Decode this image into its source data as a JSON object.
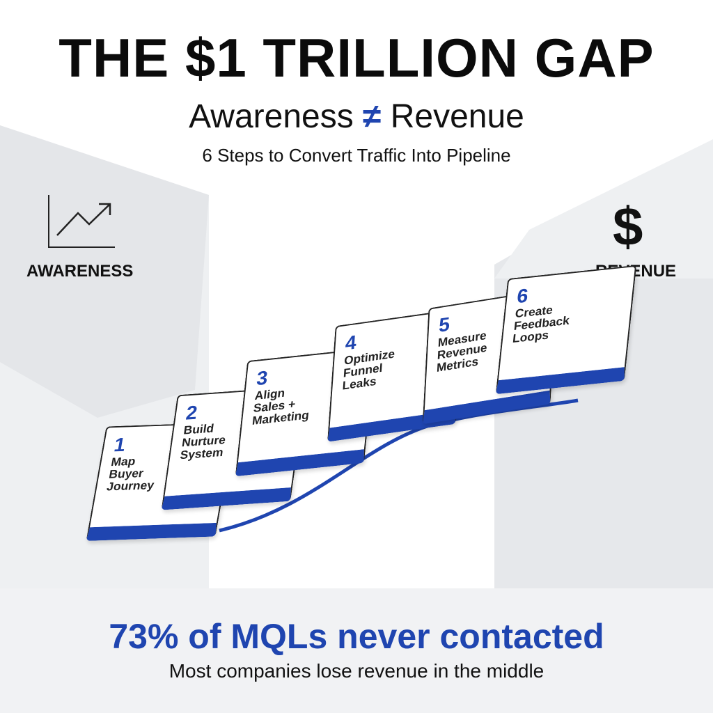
{
  "header": {
    "title": "THE $1 TRILLION GAP",
    "subtitle": {
      "left": "Awareness",
      "symbol": "≠",
      "right": "Revenue"
    },
    "tagline": "6 Steps to Convert Traffic Into Pipeline"
  },
  "start": {
    "label": "AWARENESS"
  },
  "end": {
    "icon": "$",
    "label": "REVENUE"
  },
  "steps": [
    {
      "number": 1,
      "lines": [
        "Map",
        "Buyer",
        "Journey"
      ]
    },
    {
      "number": 2,
      "lines": [
        "Build",
        "Nurture",
        "System"
      ]
    },
    {
      "number": 3,
      "lines": [
        "Align",
        "Sales +",
        "Marketing"
      ]
    },
    {
      "number": 4,
      "lines": [
        "Optimize",
        "Funnel",
        "Leaks"
      ]
    },
    {
      "number": 5,
      "lines": [
        "Measure",
        "Revenue",
        "Metrics"
      ]
    },
    {
      "number": 6,
      "lines": [
        "Create",
        "Feedback",
        "Loops"
      ]
    }
  ],
  "footer": {
    "stat": "73% of MQLs never contacted",
    "note": "Most companies lose revenue in the middle"
  }
}
